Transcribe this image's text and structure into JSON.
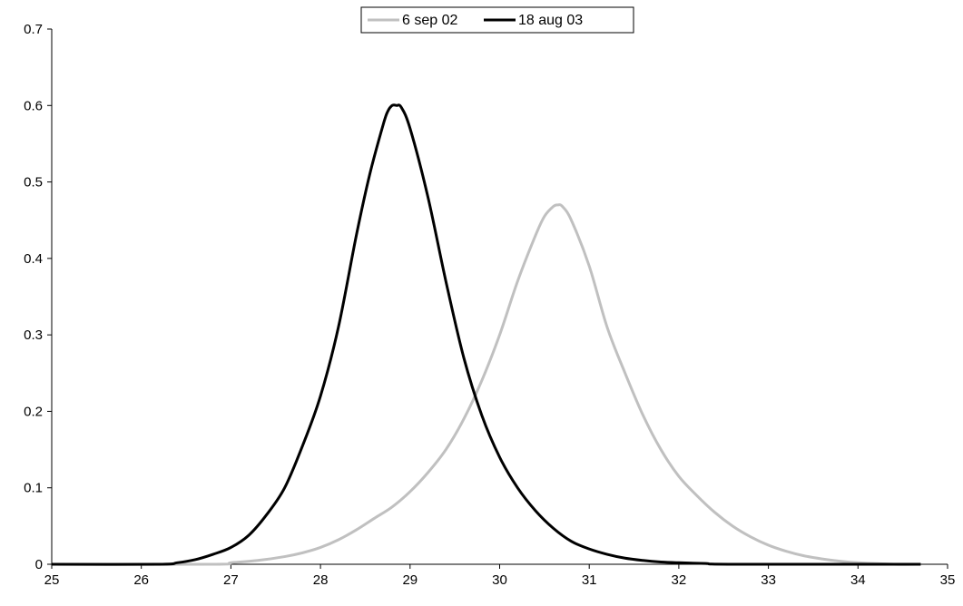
{
  "chart_data": {
    "type": "line",
    "title": "",
    "xlabel": "",
    "ylabel": "",
    "xlim": [
      25,
      35
    ],
    "ylim": [
      0,
      0.7
    ],
    "x_ticks": [
      "25",
      "26",
      "27",
      "28",
      "29",
      "30",
      "31",
      "32",
      "33",
      "34",
      "35"
    ],
    "y_ticks": [
      "0",
      "0.1",
      "0.2",
      "0.3",
      "0.4",
      "0.5",
      "0.6",
      "0.7"
    ],
    "grid": false,
    "legend_position": "top-center",
    "series": [
      {
        "name": "6 sep 02",
        "color": "#c0c0c0",
        "x": [
          25.0,
          26.8,
          27.0,
          27.3,
          27.6,
          27.8,
          28.0,
          28.2,
          28.4,
          28.6,
          28.8,
          29.0,
          29.2,
          29.4,
          29.6,
          29.8,
          30.0,
          30.2,
          30.4,
          30.5,
          30.6,
          30.65,
          30.7,
          30.8,
          31.0,
          31.2,
          31.4,
          31.6,
          31.8,
          32.0,
          32.2,
          32.4,
          32.6,
          32.8,
          33.0,
          33.2,
          33.4,
          33.6,
          33.8,
          34.0,
          34.4,
          34.7
        ],
        "y": [
          0.0,
          0.0,
          0.002,
          0.005,
          0.01,
          0.015,
          0.022,
          0.032,
          0.045,
          0.06,
          0.075,
          0.095,
          0.12,
          0.15,
          0.19,
          0.24,
          0.3,
          0.37,
          0.43,
          0.455,
          0.468,
          0.47,
          0.468,
          0.45,
          0.39,
          0.31,
          0.25,
          0.195,
          0.15,
          0.115,
          0.09,
          0.068,
          0.05,
          0.036,
          0.025,
          0.017,
          0.011,
          0.007,
          0.004,
          0.002,
          0.0,
          0.0
        ]
      },
      {
        "name": "18 aug 03",
        "color": "#000000",
        "x": [
          25.0,
          26.2,
          26.4,
          26.6,
          26.8,
          27.0,
          27.2,
          27.4,
          27.6,
          27.8,
          28.0,
          28.2,
          28.4,
          28.55,
          28.7,
          28.75,
          28.8,
          28.85,
          28.9,
          29.0,
          29.2,
          29.4,
          29.6,
          29.8,
          30.0,
          30.2,
          30.4,
          30.6,
          30.8,
          31.0,
          31.2,
          31.4,
          31.6,
          31.8,
          32.0,
          32.3,
          32.6,
          34.7
        ],
        "y": [
          0.0,
          0.0,
          0.002,
          0.006,
          0.013,
          0.022,
          0.038,
          0.065,
          0.1,
          0.155,
          0.22,
          0.31,
          0.43,
          0.51,
          0.575,
          0.592,
          0.6,
          0.6,
          0.598,
          0.57,
          0.48,
          0.37,
          0.27,
          0.195,
          0.14,
          0.1,
          0.07,
          0.047,
          0.03,
          0.02,
          0.013,
          0.008,
          0.005,
          0.003,
          0.002,
          0.001,
          0.0,
          0.0
        ]
      }
    ]
  }
}
